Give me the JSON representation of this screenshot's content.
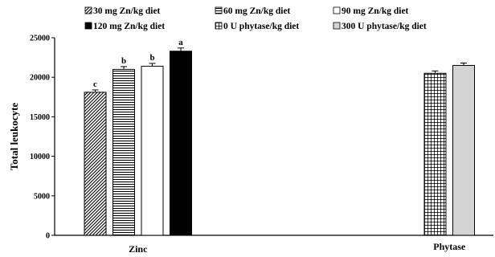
{
  "chart_data": {
    "type": "bar",
    "ylabel": "Total leukocyte",
    "ylim": [
      0,
      25000
    ],
    "yticks": [
      0,
      5000,
      10000,
      15000,
      20000,
      25000
    ],
    "grid": false,
    "legend_position": "top",
    "groups": [
      {
        "name": "Zinc",
        "bars": [
          {
            "series": "30 mg Zn/kg diet",
            "value": 18100,
            "error": 300,
            "label": "c",
            "pattern": "diagonal"
          },
          {
            "series": "60 mg Zn/kg diet",
            "value": 21000,
            "error": 350,
            "label": "b",
            "pattern": "horizontal"
          },
          {
            "series": "90 mg Zn/kg diet",
            "value": 21400,
            "error": 350,
            "label": "b",
            "pattern": "white"
          },
          {
            "series": "120 mg Zn/kg diet",
            "value": 23300,
            "error": 400,
            "label": "a",
            "pattern": "black"
          }
        ]
      },
      {
        "name": "Phytase",
        "bars": [
          {
            "series": "0 U phytase/kg diet",
            "value": 20500,
            "error": 300,
            "label": "",
            "pattern": "grid"
          },
          {
            "series": "300 U phytase/kg diet",
            "value": 21500,
            "error": 300,
            "label": "",
            "pattern": "gray"
          }
        ]
      }
    ],
    "legend": [
      {
        "label": "30 mg Zn/kg diet",
        "pattern": "diagonal"
      },
      {
        "label": "60 mg Zn/kg diet",
        "pattern": "horizontal"
      },
      {
        "label": "90 mg Zn/kg diet",
        "pattern": "white"
      },
      {
        "label": "120 mg Zn/kg diet",
        "pattern": "black"
      },
      {
        "label": "0 U phytase/kg diet",
        "pattern": "grid"
      },
      {
        "label": "300 U phytase/kg diet",
        "pattern": "gray"
      }
    ]
  }
}
